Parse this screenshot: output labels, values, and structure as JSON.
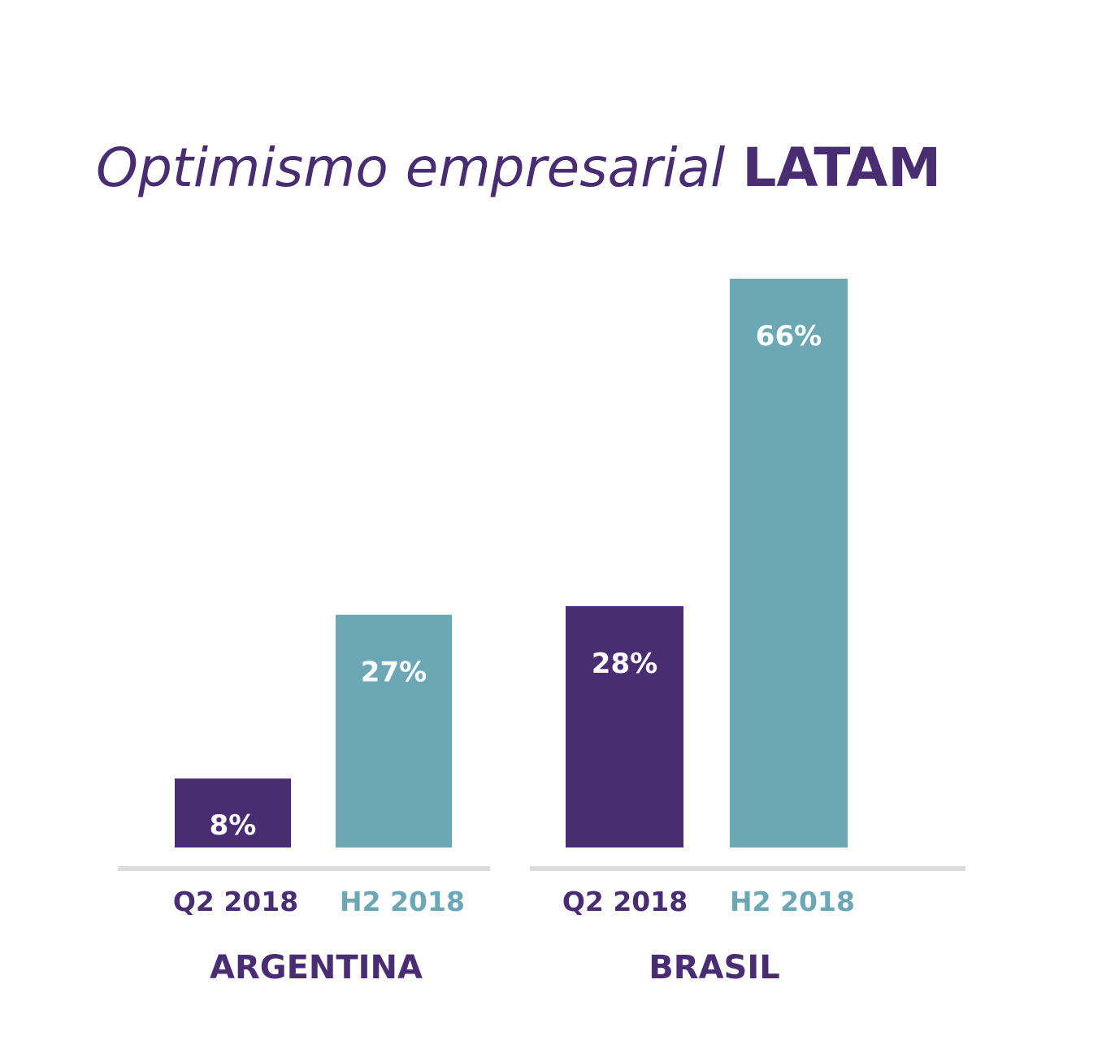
{
  "chart_data": {
    "type": "bar",
    "title": "Optimismo empresarial",
    "title_bold": "LATAM",
    "groups": [
      {
        "name": "ARGENTINA",
        "categories": [
          "Q2 2018",
          "H2 2018"
        ],
        "values": [
          8,
          27
        ],
        "labels": [
          "8%",
          "27%"
        ]
      },
      {
        "name": "BRASIL",
        "categories": [
          "Q2 2018",
          "H2 2018"
        ],
        "values": [
          28,
          66
        ],
        "labels": [
          "28%",
          "66%"
        ]
      }
    ],
    "colors": {
      "Q2 2018": "#482d73",
      "H2 2018": "#6ba7b4"
    },
    "axis_color": "#dcdcdc",
    "grid": false,
    "ylim": [
      0,
      66
    ],
    "legend": "none"
  }
}
